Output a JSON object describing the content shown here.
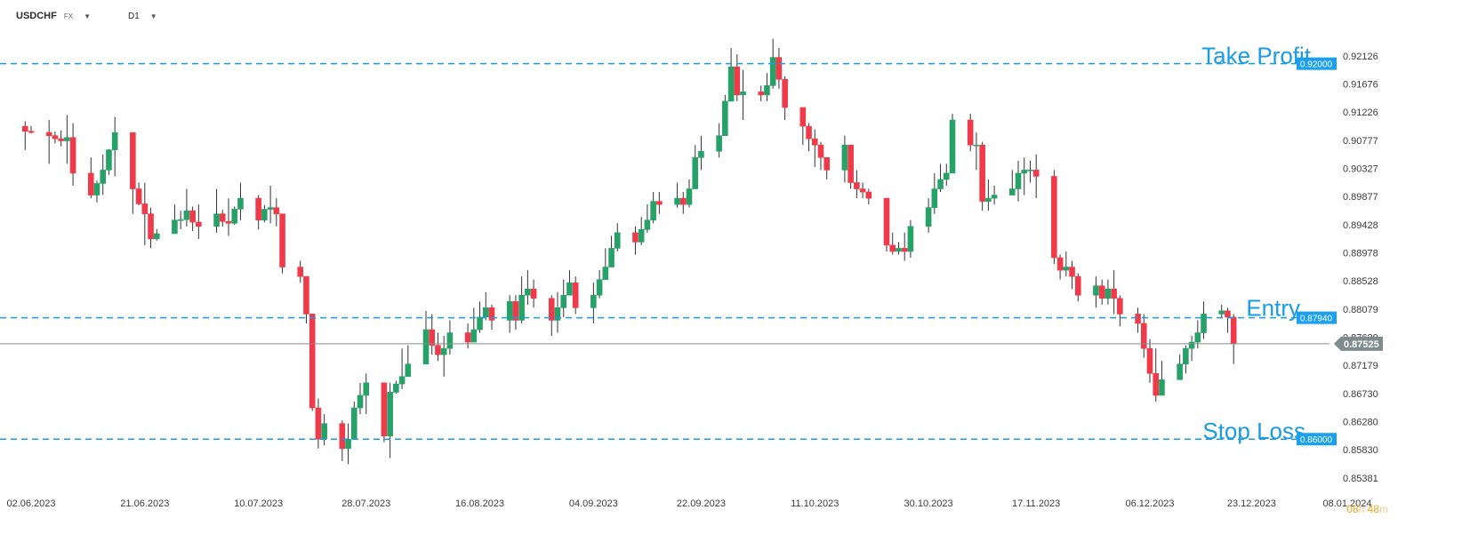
{
  "header": {
    "symbol": "USDCHF",
    "symbol_type": "FX",
    "timeframe": "D1",
    "dropdown_icon": "chevron-down-icon"
  },
  "countdown": {
    "hours": "08",
    "h_unit": "h",
    "minutes": "48",
    "m_unit": "m"
  },
  "colors": {
    "bull": "#26a269",
    "bear": "#f03a4a",
    "level_line": "#1a9be6",
    "level_label_bg": "#1aa0ef",
    "current_price_bg": "#7f8c8d",
    "axis_text": "#3a3a3a",
    "countdown": "#f5a623"
  },
  "chart_data": {
    "type": "candlestick",
    "y_range": [
      0.8518,
      0.9262
    ],
    "y_ticks": [
      "0.92126",
      "0.91676",
      "0.91226",
      "0.90777",
      "0.90327",
      "0.89877",
      "0.89428",
      "0.88978",
      "0.88528",
      "0.88079",
      "0.87629",
      "0.87179",
      "0.86730",
      "0.86280",
      "0.85830",
      "0.85381"
    ],
    "x_range": [
      "2023-06-01",
      "2024-01-08"
    ],
    "x_tick_labels": [
      "02.06.2023",
      "21.06.2023",
      "10.07.2023",
      "28.07.2023",
      "16.08.2023",
      "04.09.2023",
      "22.09.2023",
      "11.10.2023",
      "30.10.2023",
      "17.11.2023",
      "06.12.2023",
      "23.12.2023",
      "08.01.2024"
    ],
    "x_tick_dates": [
      "2023-06-02",
      "2023-06-21",
      "2023-07-10",
      "2023-07-28",
      "2023-08-16",
      "2023-09-04",
      "2023-09-22",
      "2023-10-11",
      "2023-10-30",
      "2023-11-17",
      "2023-12-06",
      "2023-12-23",
      "2024-01-08"
    ],
    "levels": [
      {
        "name": "Take Profit",
        "price": "0.92000",
        "value": 0.92
      },
      {
        "name": "Entry",
        "price": "0.87940",
        "value": 0.8794
      },
      {
        "name": "Stop Loss",
        "price": "0.86000",
        "value": 0.86
      }
    ],
    "current_price": {
      "label": "0.87525",
      "value": 0.87525
    },
    "anchors": [
      [
        "2023-06-01",
        0.9092,
        0.9108,
        0.9062
      ],
      [
        "2023-06-05",
        0.9085,
        0.911,
        0.904
      ],
      [
        "2023-06-08",
        0.9082,
        0.9118,
        0.904
      ],
      [
        "2023-06-09",
        0.9025,
        0.9105,
        0.9005
      ],
      [
        "2023-06-12",
        0.899,
        0.905,
        0.8985
      ],
      [
        "2023-06-14",
        0.903,
        0.9055,
        0.899
      ],
      [
        "2023-06-16",
        0.909,
        0.9115,
        0.902
      ],
      [
        "2023-06-19",
        0.9,
        0.905,
        0.896
      ],
      [
        "2023-06-21",
        0.896,
        0.901,
        0.891
      ],
      [
        "2023-06-22",
        0.892,
        0.897,
        0.8905
      ],
      [
        "2023-06-26",
        0.895,
        0.8975,
        0.8935
      ],
      [
        "2023-06-28",
        0.8965,
        0.9,
        0.894
      ],
      [
        "2023-06-30",
        0.894,
        0.8975,
        0.892
      ],
      [
        "2023-07-03",
        0.896,
        0.9,
        0.893
      ],
      [
        "2023-07-05",
        0.8945,
        0.8985,
        0.8925
      ],
      [
        "2023-07-07",
        0.8985,
        0.901,
        0.895
      ],
      [
        "2023-07-10",
        0.895,
        0.899,
        0.8935
      ],
      [
        "2023-07-12",
        0.897,
        0.9005,
        0.8945
      ],
      [
        "2023-07-13",
        0.896,
        0.8985,
        0.894
      ],
      [
        "2023-07-14",
        0.8875,
        0.896,
        0.8865
      ],
      [
        "2023-07-17",
        0.886,
        0.8885,
        0.885
      ],
      [
        "2023-07-18",
        0.88,
        0.886,
        0.8785
      ],
      [
        "2023-07-19",
        0.865,
        0.88,
        0.8645
      ],
      [
        "2023-07-20",
        0.86,
        0.8665,
        0.8585
      ],
      [
        "2023-07-21",
        0.8625,
        0.864,
        0.859
      ],
      [
        "2023-07-24",
        0.8585,
        0.863,
        0.8565
      ],
      [
        "2023-07-25",
        0.86,
        0.8625,
        0.856
      ],
      [
        "2023-07-26",
        0.865,
        0.866,
        0.86
      ],
      [
        "2023-07-27",
        0.867,
        0.869,
        0.864
      ],
      [
        "2023-07-28",
        0.869,
        0.8705,
        0.864
      ],
      [
        "2023-07-31",
        0.8605,
        0.866,
        0.8595
      ],
      [
        "2023-08-01",
        0.8675,
        0.869,
        0.857
      ],
      [
        "2023-08-03",
        0.87,
        0.8745,
        0.868
      ],
      [
        "2023-08-04",
        0.872,
        0.875,
        0.87
      ],
      [
        "2023-08-07",
        0.8775,
        0.8805,
        0.874
      ],
      [
        "2023-08-08",
        0.875,
        0.88,
        0.8735
      ],
      [
        "2023-08-09",
        0.8735,
        0.877,
        0.8725
      ],
      [
        "2023-08-10",
        0.8745,
        0.8765,
        0.87
      ],
      [
        "2023-08-11",
        0.877,
        0.879,
        0.8735
      ],
      [
        "2023-08-14",
        0.8755,
        0.8785,
        0.8745
      ],
      [
        "2023-08-15",
        0.8775,
        0.881,
        0.8765
      ],
      [
        "2023-08-16",
        0.8795,
        0.882,
        0.877
      ],
      [
        "2023-08-17",
        0.881,
        0.8835,
        0.879
      ],
      [
        "2023-08-18",
        0.879,
        0.8815,
        0.8775
      ],
      [
        "2023-08-21",
        0.882,
        0.883,
        0.877
      ],
      [
        "2023-08-22",
        0.879,
        0.883,
        0.8775
      ],
      [
        "2023-08-23",
        0.883,
        0.886,
        0.8785
      ],
      [
        "2023-08-24",
        0.884,
        0.887,
        0.8815
      ],
      [
        "2023-08-25",
        0.8825,
        0.8855,
        0.881
      ],
      [
        "2023-08-28",
        0.879,
        0.883,
        0.8765
      ],
      [
        "2023-08-29",
        0.881,
        0.8835,
        0.877
      ],
      [
        "2023-08-30",
        0.883,
        0.8855,
        0.8795
      ],
      [
        "2023-08-31",
        0.885,
        0.887,
        0.883
      ],
      [
        "2023-09-01",
        0.881,
        0.886,
        0.88
      ],
      [
        "2023-09-04",
        0.883,
        0.885,
        0.8785
      ],
      [
        "2023-09-05",
        0.8855,
        0.887,
        0.8825
      ],
      [
        "2023-09-06",
        0.8875,
        0.8905,
        0.886
      ],
      [
        "2023-09-07",
        0.8905,
        0.8925,
        0.888
      ],
      [
        "2023-09-08",
        0.893,
        0.8945,
        0.89
      ],
      [
        "2023-09-11",
        0.8915,
        0.894,
        0.8895
      ],
      [
        "2023-09-12",
        0.8935,
        0.8955,
        0.891
      ],
      [
        "2023-09-13",
        0.895,
        0.8975,
        0.893
      ],
      [
        "2023-09-14",
        0.898,
        0.8995,
        0.8945
      ],
      [
        "2023-09-15",
        0.8975,
        0.8995,
        0.896
      ],
      [
        "2023-09-18",
        0.8985,
        0.901,
        0.897
      ],
      [
        "2023-09-19",
        0.8975,
        0.8995,
        0.896
      ],
      [
        "2023-09-20",
        0.9,
        0.9015,
        0.897
      ],
      [
        "2023-09-21",
        0.905,
        0.907,
        0.9
      ],
      [
        "2023-09-22",
        0.906,
        0.9085,
        0.903
      ],
      [
        "2023-09-25",
        0.9085,
        0.9105,
        0.905
      ],
      [
        "2023-09-26",
        0.914,
        0.915,
        0.909
      ],
      [
        "2023-09-27",
        0.9195,
        0.9225,
        0.914
      ],
      [
        "2023-09-28",
        0.915,
        0.9215,
        0.914
      ],
      [
        "2023-09-29",
        0.9155,
        0.919,
        0.911
      ],
      [
        "2023-10-02",
        0.915,
        0.9165,
        0.914
      ],
      [
        "2023-10-03",
        0.9165,
        0.9185,
        0.914
      ],
      [
        "2023-10-04",
        0.921,
        0.924,
        0.916
      ],
      [
        "2023-10-05",
        0.9175,
        0.9225,
        0.916
      ],
      [
        "2023-10-06",
        0.913,
        0.918,
        0.911
      ],
      [
        "2023-10-09",
        0.91,
        0.913,
        0.907
      ],
      [
        "2023-10-10",
        0.908,
        0.9105,
        0.906
      ],
      [
        "2023-10-11",
        0.907,
        0.9095,
        0.9035
      ],
      [
        "2023-10-12",
        0.905,
        0.9075,
        0.903
      ],
      [
        "2023-10-13",
        0.903,
        0.905,
        0.9015
      ],
      [
        "2023-10-16",
        0.907,
        0.9085,
        0.901
      ],
      [
        "2023-10-17",
        0.901,
        0.907,
        0.9
      ],
      [
        "2023-10-18",
        0.9,
        0.903,
        0.8985
      ],
      [
        "2023-10-19",
        0.8995,
        0.901,
        0.8985
      ],
      [
        "2023-10-20",
        0.8985,
        0.9,
        0.8975
      ],
      [
        "2023-10-23",
        0.891,
        0.898,
        0.89
      ],
      [
        "2023-10-24",
        0.89,
        0.893,
        0.8895
      ],
      [
        "2023-10-25",
        0.8905,
        0.8915,
        0.8895
      ],
      [
        "2023-10-26",
        0.89,
        0.893,
        0.8885
      ],
      [
        "2023-10-27",
        0.894,
        0.895,
        0.889
      ],
      [
        "2023-10-30",
        0.897,
        0.8985,
        0.893
      ],
      [
        "2023-10-31",
        0.9,
        0.9025,
        0.896
      ],
      [
        "2023-11-01",
        0.9015,
        0.904,
        0.8995
      ],
      [
        "2023-11-02",
        0.9025,
        0.904,
        0.9005
      ],
      [
        "2023-11-03",
        0.911,
        0.912,
        0.9025
      ],
      [
        "2023-11-06",
        0.907,
        0.912,
        0.906
      ],
      [
        "2023-11-07",
        0.907,
        0.909,
        0.903
      ],
      [
        "2023-11-08",
        0.898,
        0.9075,
        0.8965
      ],
      [
        "2023-11-09",
        0.8985,
        0.9015,
        0.8965
      ],
      [
        "2023-11-10",
        0.899,
        0.9005,
        0.8975
      ],
      [
        "2023-11-13",
        0.9,
        0.903,
        0.899
      ],
      [
        "2023-11-14",
        0.9025,
        0.9045,
        0.898
      ],
      [
        "2023-11-15",
        0.903,
        0.905,
        0.899
      ],
      [
        "2023-11-16",
        0.903,
        0.9045,
        0.901
      ],
      [
        "2023-11-17",
        0.902,
        0.9055,
        0.8985
      ],
      [
        "2023-11-20",
        0.889,
        0.903,
        0.888
      ],
      [
        "2023-11-21",
        0.887,
        0.8895,
        0.8855
      ],
      [
        "2023-11-22",
        0.8875,
        0.89,
        0.886
      ],
      [
        "2023-11-23",
        0.886,
        0.8885,
        0.884
      ],
      [
        "2023-11-24",
        0.883,
        0.8865,
        0.882
      ],
      [
        "2023-11-27",
        0.8845,
        0.886,
        0.881
      ],
      [
        "2023-11-28",
        0.8825,
        0.8855,
        0.8815
      ],
      [
        "2023-11-29",
        0.884,
        0.8855,
        0.8815
      ],
      [
        "2023-11-30",
        0.8825,
        0.887,
        0.88
      ],
      [
        "2023-12-01",
        0.88,
        0.883,
        0.878
      ],
      [
        "2023-12-04",
        0.8785,
        0.881,
        0.877
      ],
      [
        "2023-12-05",
        0.8745,
        0.88,
        0.873
      ],
      [
        "2023-12-06",
        0.8705,
        0.876,
        0.869
      ],
      [
        "2023-12-07",
        0.867,
        0.8745,
        0.866
      ],
      [
        "2023-12-08",
        0.8695,
        0.8725,
        0.8685
      ],
      [
        "2023-12-11",
        0.872,
        0.8735,
        0.8695
      ],
      [
        "2023-12-12",
        0.8745,
        0.875,
        0.8705
      ],
      [
        "2023-12-13",
        0.8755,
        0.8765,
        0.8725
      ],
      [
        "2023-12-14",
        0.877,
        0.879,
        0.8745
      ],
      [
        "2023-12-15",
        0.88,
        0.882,
        0.876
      ],
      [
        "2023-12-18",
        0.8805,
        0.8815,
        0.8795
      ],
      [
        "2023-12-19",
        0.8795,
        0.881,
        0.877
      ],
      [
        "2023-12-20",
        0.87525,
        0.88,
        0.872
      ]
    ]
  }
}
